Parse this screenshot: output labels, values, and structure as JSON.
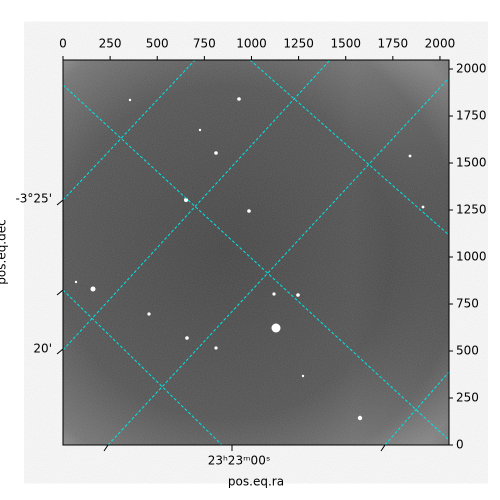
{
  "chart_data": {
    "type": "image",
    "xlabel": "pos.eq.ra",
    "ylabel": "pos.eq.dec",
    "xlim": [
      0,
      2048
    ],
    "xticks": [
      0,
      250,
      500,
      750,
      1000,
      1250,
      1500,
      1750,
      2000
    ],
    "ylim": [
      0,
      2048
    ],
    "yticks": [
      0,
      250,
      500,
      750,
      1000,
      1250,
      1500,
      1750,
      2000
    ],
    "ra_tick_labels": [
      "23ʰ23ᵐ00ˢ"
    ],
    "dec_tick_labels": [
      "-3°25'",
      "20'"
    ],
    "grid_color": "#00e5e5"
  }
}
